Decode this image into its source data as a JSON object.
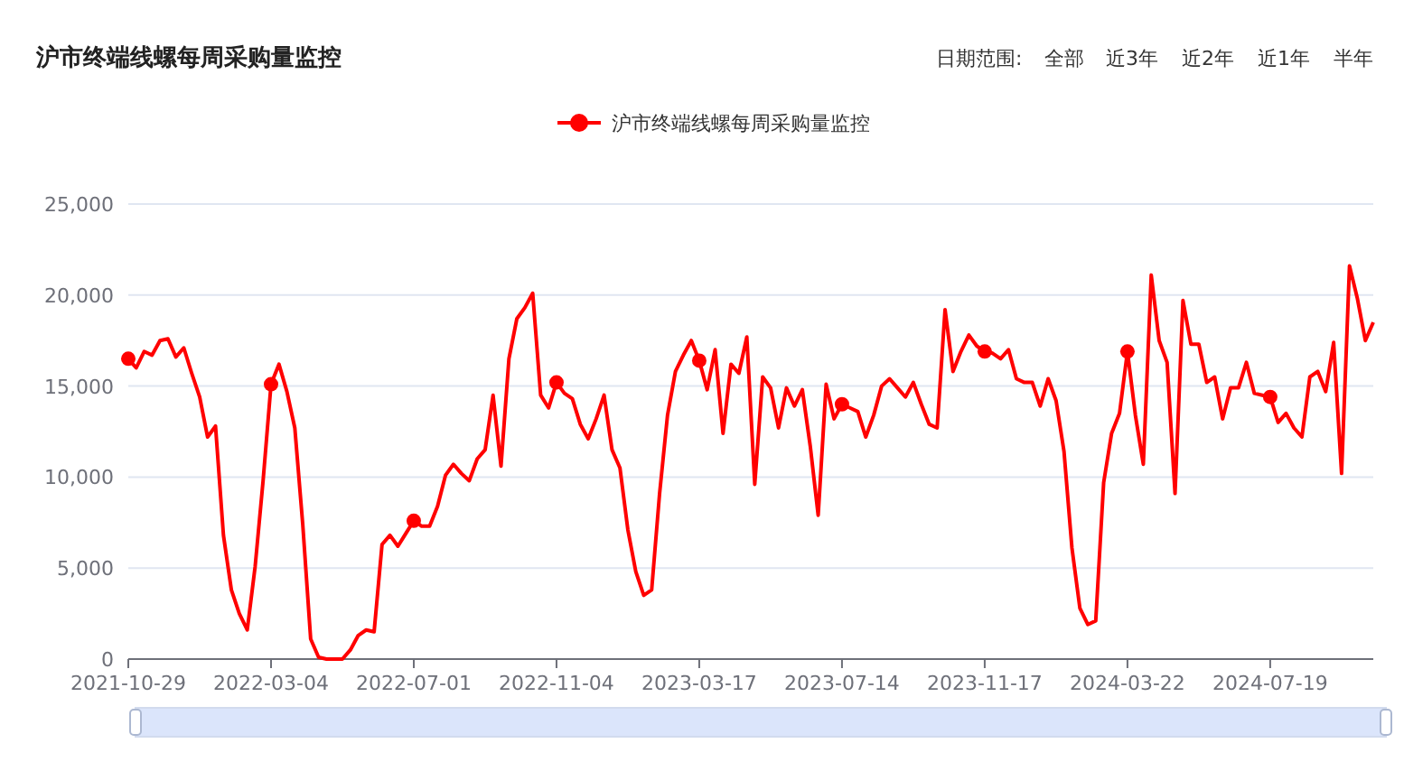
{
  "chart_data": {
    "type": "line",
    "title": "沪市终端线螺每周采购量监控",
    "annotations": [
      "日期范围:",
      "全部",
      "近3年",
      "近2年",
      "近1年",
      "半年"
    ],
    "categories": [
      "2021-10-29",
      null,
      null,
      null,
      null,
      null,
      null,
      null,
      null,
      null,
      null,
      null,
      null,
      null,
      null,
      null,
      null,
      null,
      "2022-03-04",
      null,
      null,
      null,
      null,
      null,
      null,
      null,
      null,
      null,
      null,
      null,
      null,
      null,
      null,
      null,
      null,
      null,
      "2022-07-01",
      null,
      null,
      null,
      null,
      null,
      null,
      null,
      null,
      null,
      null,
      null,
      null,
      null,
      null,
      null,
      null,
      null,
      "2022-11-04",
      null,
      null,
      null,
      null,
      null,
      null,
      null,
      null,
      null,
      null,
      null,
      null,
      null,
      null,
      null,
      null,
      null,
      "2023-03-17",
      null,
      null,
      null,
      null,
      null,
      null,
      null,
      null,
      null,
      null,
      null,
      null,
      null,
      null,
      null,
      null,
      null,
      "2023-07-14",
      null,
      null,
      null,
      null,
      null,
      null,
      null,
      null,
      null,
      null,
      null,
      null,
      null,
      null,
      null,
      null,
      null,
      "2023-11-17",
      null,
      null,
      null,
      null,
      null,
      null,
      null,
      null,
      null,
      null,
      null,
      null,
      null,
      null,
      null,
      null,
      null,
      "2024-03-22",
      null,
      null,
      null,
      null,
      null,
      null,
      null,
      null,
      null,
      null,
      null,
      null,
      null,
      null,
      null,
      null,
      null,
      "2024-07-19",
      null,
      null,
      null,
      null,
      null,
      null,
      null,
      null,
      null,
      null,
      null,
      null,
      null
    ],
    "series": [
      {
        "name": "沪市终端线螺每周采购量监控",
        "color": "#ff0000",
        "values": [
          16500,
          16000,
          16900,
          16700,
          17500,
          17600,
          16600,
          17100,
          15700,
          14400,
          12200,
          12800,
          6800,
          3800,
          2500,
          1600,
          5100,
          9800,
          15100,
          16200,
          14700,
          12700,
          7400,
          1100,
          100,
          0,
          0,
          0,
          500,
          1300,
          1600,
          1500,
          6300,
          6800,
          6200,
          6900,
          7600,
          7300,
          7300,
          8400,
          10100,
          10700,
          10200,
          9800,
          11000,
          11500,
          14500,
          10600,
          16500,
          18700,
          19300,
          20100,
          14500,
          13800,
          15200,
          14600,
          14300,
          12900,
          12100,
          13200,
          14500,
          11500,
          10500,
          7100,
          4800,
          3500,
          3800,
          9100,
          13400,
          15800,
          16700,
          17500,
          16400,
          14800,
          17000,
          12400,
          16200,
          15700,
          17700,
          9600,
          15500,
          14900,
          12700,
          14900,
          13900,
          14800,
          11700,
          7900,
          15100,
          13200,
          14000,
          13800,
          13600,
          12200,
          13400,
          15000,
          15400,
          14900,
          14400,
          15200,
          14000,
          12900,
          12700,
          19200,
          15800,
          16900,
          17800,
          17200,
          16900,
          16800,
          16500,
          17000,
          15400,
          15200,
          15200,
          13900,
          15400,
          14200,
          11400,
          6100,
          2800,
          1900,
          2100,
          9700,
          12400,
          13500,
          16900,
          13400,
          10700,
          21100,
          17500,
          16300,
          9100,
          19700,
          17300,
          17300,
          15200,
          15500,
          13200,
          14900,
          14900,
          16300,
          14600,
          14500,
          14400,
          13000,
          13500,
          12700,
          12200,
          15500,
          15800,
          14700,
          17400,
          10200,
          21600,
          19800,
          17500,
          18500
        ]
      }
    ],
    "ylim": [
      0,
      25000
    ],
    "yticks": [
      {
        "value": 0,
        "label": "0"
      },
      {
        "value": 5000,
        "label": "5,000"
      },
      {
        "value": 10000,
        "label": "10,000"
      },
      {
        "value": 15000,
        "label": "15,000"
      },
      {
        "value": 20000,
        "label": "20,000"
      },
      {
        "value": 25000,
        "label": "25,000"
      }
    ],
    "grid": "y",
    "legend": "top",
    "line_style": "solid"
  }
}
